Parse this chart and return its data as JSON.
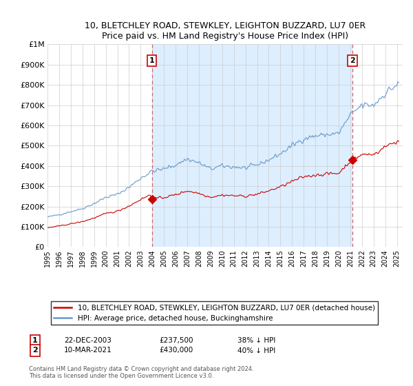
{
  "title": "10, BLETCHLEY ROAD, STEWKLEY, LEIGHTON BUZZARD, LU7 0ER",
  "subtitle": "Price paid vs. HM Land Registry's House Price Index (HPI)",
  "ylim": [
    0,
    1000000
  ],
  "yticks": [
    0,
    100000,
    200000,
    300000,
    400000,
    500000,
    600000,
    700000,
    800000,
    900000,
    1000000
  ],
  "ytick_labels": [
    "£0",
    "£100K",
    "£200K",
    "£300K",
    "£400K",
    "£500K",
    "£600K",
    "£700K",
    "£800K",
    "£900K",
    "£1M"
  ],
  "sale1_date_x": 2003.97,
  "sale1_price": 237500,
  "sale1_label": "1",
  "sale2_date_x": 2021.19,
  "sale2_price": 430000,
  "sale2_label": "2",
  "hpi_color": "#6699cc",
  "hpi_fill_color": "#ddeeff",
  "sale_color": "#cc0000",
  "marker_color": "#cc0000",
  "vline1_color": "#cc6666",
  "vline2_color": "#cc6666",
  "legend_sale_label": "10, BLETCHLEY ROAD, STEWKLEY, LEIGHTON BUZZARD, LU7 0ER (detached house)",
  "legend_hpi_label": "HPI: Average price, detached house, Buckinghamshire",
  "footnote": "Contains HM Land Registry data © Crown copyright and database right 2024.\nThis data is licensed under the Open Government Licence v3.0.",
  "xmin": 1995.0,
  "xmax": 2025.5
}
